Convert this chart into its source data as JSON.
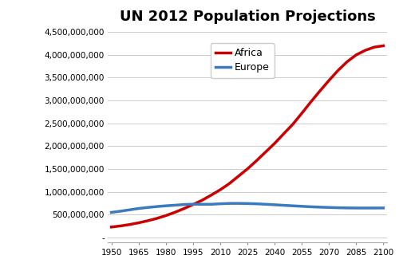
{
  "title": "UN 2012 Population Projections",
  "africa_x": [
    1950,
    1955,
    1960,
    1965,
    1970,
    1975,
    1980,
    1985,
    1990,
    1995,
    2000,
    2005,
    2010,
    2015,
    2020,
    2025,
    2030,
    2035,
    2040,
    2045,
    2050,
    2055,
    2060,
    2065,
    2070,
    2075,
    2080,
    2085,
    2090,
    2095,
    2100
  ],
  "africa_y": [
    228000000,
    252000000,
    282000000,
    320000000,
    365000000,
    416000000,
    478000000,
    550000000,
    632000000,
    720000000,
    814000000,
    926000000,
    1044000000,
    1179000000,
    1340000000,
    1500000000,
    1680000000,
    1870000000,
    2060000000,
    2270000000,
    2478000000,
    2720000000,
    2970000000,
    3210000000,
    3440000000,
    3660000000,
    3850000000,
    4000000000,
    4100000000,
    4170000000,
    4200000000
  ],
  "europe_x": [
    1950,
    1955,
    1960,
    1965,
    1970,
    1975,
    1980,
    1985,
    1990,
    1995,
    2000,
    2005,
    2010,
    2015,
    2020,
    2025,
    2030,
    2035,
    2040,
    2045,
    2050,
    2055,
    2060,
    2065,
    2070,
    2075,
    2080,
    2085,
    2090,
    2095,
    2100
  ],
  "europe_y": [
    549000000,
    575000000,
    605000000,
    634000000,
    657000000,
    676000000,
    693000000,
    706000000,
    721000000,
    728000000,
    726000000,
    726000000,
    738000000,
    745000000,
    746000000,
    743000000,
    737000000,
    727000000,
    716000000,
    704000000,
    693000000,
    682000000,
    672000000,
    664000000,
    657000000,
    651000000,
    647000000,
    645000000,
    645000000,
    645000000,
    646000000
  ],
  "africa_color": "#cc0000",
  "europe_color": "#3a7abf",
  "africa_label": "Africa",
  "europe_label": "Europe",
  "xlim": [
    1948,
    2102
  ],
  "ylim": [
    -100000000,
    4600000000
  ],
  "xticks": [
    1950,
    1965,
    1980,
    1995,
    2010,
    2025,
    2040,
    2055,
    2070,
    2085,
    2100
  ],
  "yticks": [
    0,
    500000000,
    1000000000,
    1500000000,
    2000000000,
    2500000000,
    3000000000,
    3500000000,
    4000000000,
    4500000000
  ],
  "ytick_labels": [
    "-",
    "500,000,000",
    "1,000,000,000",
    "1,500,000,000",
    "2,000,000,000",
    "2,500,000,000",
    "3,000,000,000",
    "3,500,000,000",
    "4,000,000,000",
    "4,500,000,000"
  ],
  "line_width": 2.5,
  "title_fontsize": 13,
  "tick_fontsize": 7.5,
  "legend_fontsize": 9,
  "background_color": "#ffffff",
  "grid_color": "#cccccc"
}
